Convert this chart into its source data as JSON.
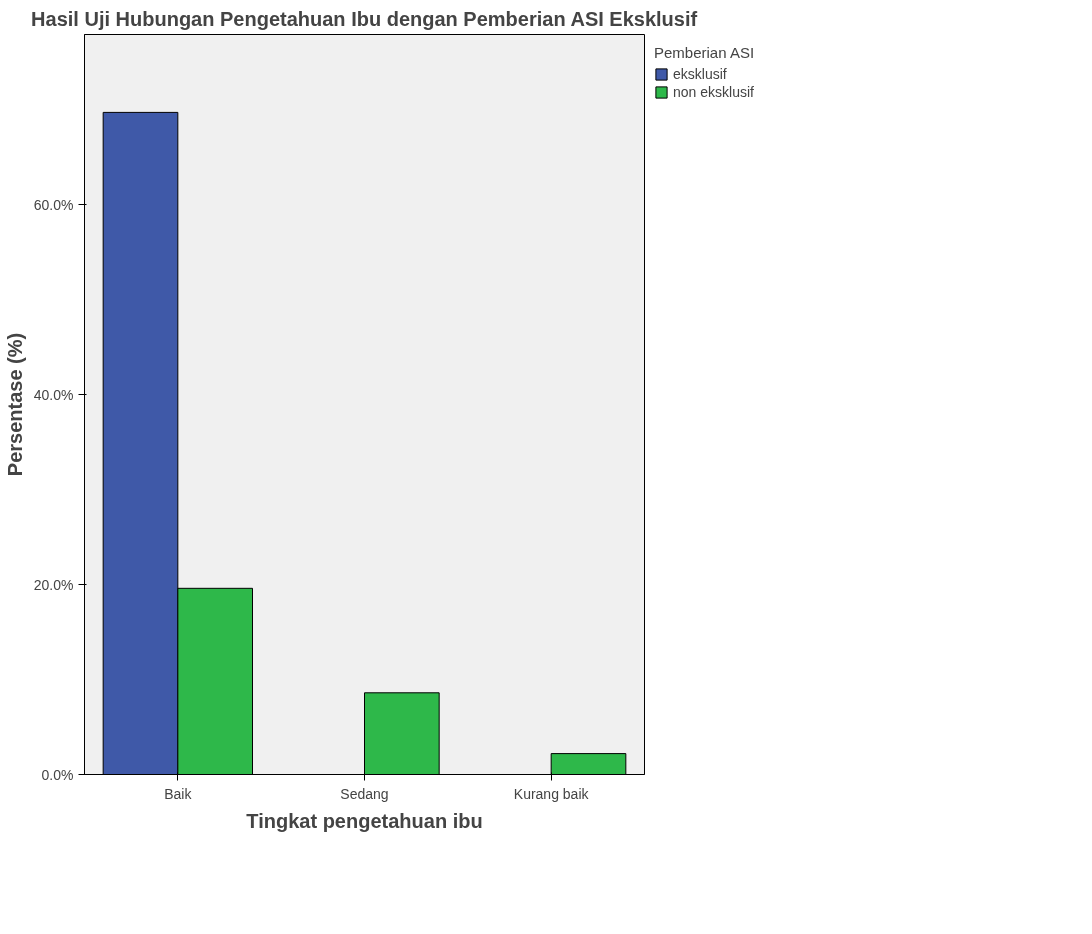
{
  "chart_data": {
    "type": "bar",
    "title": "Hasil Uji Hubungan Pengetahuan Ibu dengan Pemberian ASI Eksklusif",
    "xlabel": "Tingkat pengetahuan ibu",
    "ylabel": "Persentase (%)",
    "legend_title": "Pemberian ASI",
    "categories": [
      "Baik",
      "Sedang",
      "Kurang baik"
    ],
    "series": [
      {
        "name": "eksklusif",
        "color": "#3f59a8",
        "values": [
          69.7,
          0,
          0
        ]
      },
      {
        "name": "non eksklusif",
        "color": "#2eb84a",
        "values": [
          19.6,
          8.6,
          2.2
        ]
      }
    ],
    "ylim": [
      0,
      77.9
    ],
    "yticks": [
      {
        "value": 0,
        "label": "0.0%"
      },
      {
        "value": 20,
        "label": "20.0%"
      },
      {
        "value": 40,
        "label": "40.0%"
      },
      {
        "value": 60,
        "label": "60.0%"
      }
    ],
    "legend": "right"
  }
}
